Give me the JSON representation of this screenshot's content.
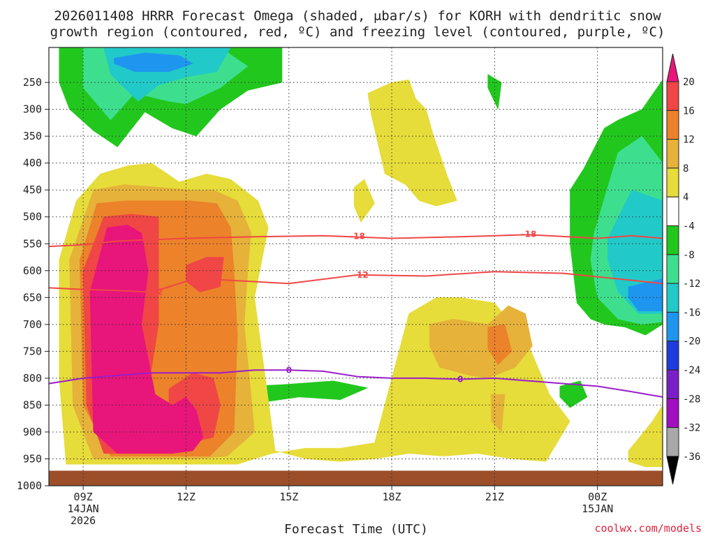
{
  "title_line1": "2026011408 HRRR Forecast Omega (shaded, μbar/s) for KORH with dendritic snow",
  "title_line2": "growth region (contoured, red, ºC) and freezing level (contoured, purple, ºC)",
  "credit": "coolwx.com/models",
  "colors": {
    "green": "#22c71e",
    "light_green": "#3ddf8f",
    "teal": "#22c9c9",
    "blue": "#1e96f0",
    "dark_blue": "#1e3cdc",
    "yellow": "#e6dc3a",
    "gold": "#e6b23a",
    "orange": "#ec822a",
    "red": "#f04646",
    "magenta": "#ec0f8c",
    "ground": "#9c4e28",
    "dgz_contour": "#f04646",
    "freezing_contour": "#9a1ec8"
  },
  "chart_data": {
    "type": "heatmap",
    "title": "2026011408 HRRR Forecast Omega (shaded, μbar/s) for KORH with dendritic snow growth region (contoured, red, ºC) and freezing level (contoured, purple, ºC)",
    "xlabel": "Forecast Time (UTC)",
    "ylabel": "",
    "x_ticks": [
      {
        "label": "09Z",
        "sub": [
          "14JAN",
          "2026"
        ]
      },
      {
        "label": "12Z",
        "sub": []
      },
      {
        "label": "15Z",
        "sub": []
      },
      {
        "label": "18Z",
        "sub": []
      },
      {
        "label": "21Z",
        "sub": []
      },
      {
        "label": "00Z",
        "sub": [
          "15JAN"
        ]
      }
    ],
    "x_range_hours": [
      8,
      25.9
    ],
    "y_ticks": [
      "250",
      "300",
      "350",
      "400",
      "450",
      "500",
      "550",
      "600",
      "650",
      "700",
      "750",
      "800",
      "850",
      "900",
      "950",
      "1000"
    ],
    "y_unit": "hPa",
    "colorbar": {
      "labels": [
        "20",
        "16",
        "12",
        "8",
        "4",
        "-4",
        "-8",
        "-12",
        "-16",
        "-20",
        "-24",
        "-28",
        "-32",
        "-36"
      ],
      "bins": [
        {
          "range": ">20",
          "color": "#e8157a"
        },
        {
          "range": "16 to 20",
          "color": "#f04646"
        },
        {
          "range": "12 to 16",
          "color": "#ec822a"
        },
        {
          "range": "8 to 12",
          "color": "#e6b23a"
        },
        {
          "range": "4 to 8",
          "color": "#e6dc3a"
        },
        {
          "range": "-4 to 4",
          "color": "#ffffff"
        },
        {
          "range": "-8 to -4",
          "color": "#22c71e"
        },
        {
          "range": "-12 to -8",
          "color": "#3ddf8f"
        },
        {
          "range": "-16 to -12",
          "color": "#22c9c9"
        },
        {
          "range": "-20 to -16",
          "color": "#1e96f0"
        },
        {
          "range": "-24 to -20",
          "color": "#1e3cdc"
        },
        {
          "range": "-28 to -24",
          "color": "#7a1ec8"
        },
        {
          "range": "-32 to -28",
          "color": "#a00ec0"
        },
        {
          "range": "-36 to -32",
          "color": "#a8a8a8"
        },
        {
          "range": "<-36",
          "color": "#000000"
        }
      ]
    },
    "contours": [
      {
        "label": "-18",
        "color": "#f04646",
        "hours": [
          8,
          9,
          10,
          12,
          14,
          16,
          18,
          20,
          22,
          24,
          25,
          25.9
        ],
        "pressure_hPa": [
          555,
          552,
          545,
          540,
          537,
          535,
          540,
          537,
          533,
          540,
          535,
          540
        ]
      },
      {
        "label": "-12",
        "color": "#f04646",
        "hours": [
          8,
          9,
          10,
          11,
          12,
          13,
          15,
          17,
          19,
          21,
          23,
          25,
          25.9
        ],
        "pressure_hPa": [
          632,
          635,
          637,
          640,
          620,
          617,
          624,
          608,
          610,
          602,
          605,
          618,
          624
        ]
      },
      {
        "label": "0",
        "color": "#9a1ec8",
        "hours": [
          8,
          9,
          10,
          11,
          12,
          13,
          14,
          15,
          16,
          17,
          18,
          19,
          20,
          21,
          22,
          23,
          24,
          25,
          25.9
        ],
        "pressure_hPa": [
          810,
          800,
          795,
          790,
          790,
          790,
          785,
          785,
          787,
          797,
          800,
          800,
          802,
          800,
          805,
          810,
          815,
          825,
          835
        ]
      }
    ],
    "contour_labels": [
      {
        "text": "-18",
        "hours": 17.0,
        "pressure_hPa": 536
      },
      {
        "text": "-18",
        "hours": 22.0,
        "pressure_hPa": 532
      },
      {
        "text": "-12",
        "hours": 11.1,
        "pressure_hPa": 640
      },
      {
        "text": "-12",
        "hours": 17.1,
        "pressure_hPa": 608
      },
      {
        "text": "0",
        "hours": 15.0,
        "pressure_hPa": 785
      },
      {
        "text": "0",
        "hours": 20.0,
        "pressure_hPa": 802
      }
    ],
    "shaded_regions": [
      {
        "bin": "-8 to -4",
        "color": "#22c71e",
        "hours": [
          8.3,
          9.3,
          10.3,
          11.3,
          12.3,
          13.3,
          13.8,
          14.8,
          14.8,
          13.8,
          13.0,
          12.3,
          11.6,
          10.8,
          10.0,
          9.3,
          8.6,
          8.3
        ],
        "pressure_hPa": [
          185,
          185,
          185,
          185,
          185,
          185,
          185,
          185,
          250,
          265,
          300,
          350,
          335,
          305,
          370,
          340,
          300,
          250
        ]
      },
      {
        "bin": "-12 to -8",
        "color": "#3ddf8f",
        "hours": [
          9.0,
          10.0,
          11.0,
          12.0,
          13.0,
          13.8,
          13.0,
          12.0,
          11.5,
          10.5,
          9.8,
          9.0
        ],
        "pressure_hPa": [
          185,
          185,
          185,
          185,
          185,
          220,
          260,
          290,
          285,
          270,
          320,
          260
        ]
      },
      {
        "bin": "-16 to -12",
        "color": "#22c9c9",
        "hours": [
          9.6,
          10.5,
          11.5,
          12.5,
          13.3,
          12.9,
          12.0,
          11.2,
          10.6,
          9.8
        ],
        "pressure_hPa": [
          185,
          185,
          185,
          185,
          185,
          230,
          240,
          255,
          285,
          235
        ]
      },
      {
        "bin": "-20 to -16",
        "color": "#1e96f0",
        "hours": [
          9.9,
          10.8,
          11.8,
          12.2,
          11.5,
          10.5,
          9.9
        ],
        "pressure_hPa": [
          205,
          195,
          200,
          215,
          230,
          230,
          215
        ]
      },
      {
        "bin": "-8 to -4",
        "color": "#22c71e",
        "hours": [
          23.2,
          23.6,
          24.2,
          24.6,
          25.3,
          25.9,
          25.9,
          25.4,
          24.8,
          24.2,
          23.8,
          23.4,
          23.2
        ],
        "pressure_hPa": [
          450,
          410,
          335,
          320,
          300,
          245,
          700,
          720,
          705,
          700,
          690,
          660,
          550
        ]
      },
      {
        "bin": "-12 to -8",
        "color": "#3ddf8f",
        "hours": [
          23.9,
          24.6,
          25.3,
          25.9,
          25.9,
          25.3,
          24.6,
          24.0,
          23.8
        ],
        "pressure_hPa": [
          530,
          380,
          350,
          400,
          695,
          700,
          690,
          650,
          580
        ]
      },
      {
        "bin": "-16 to -12",
        "color": "#22c9c9",
        "hours": [
          24.3,
          25.0,
          25.9,
          25.9,
          25.2,
          24.6,
          24.3
        ],
        "pressure_hPa": [
          540,
          450,
          470,
          680,
          680,
          640,
          580
        ]
      },
      {
        "bin": "-20 to -16",
        "color": "#1e96f0",
        "hours": [
          24.9,
          25.9,
          25.9,
          25.2,
          24.9
        ],
        "pressure_hPa": [
          630,
          615,
          675,
          675,
          650
        ]
      },
      {
        "bin": "-8 to -4",
        "color": "#22c71e",
        "hours": [
          13.8,
          14.8,
          16.3,
          17.3,
          16.5,
          15.3,
          14.2,
          13.8
        ],
        "pressure_hPa": [
          815,
          812,
          805,
          818,
          840,
          835,
          845,
          830
        ]
      },
      {
        "bin": "-8 to -4",
        "color": "#22c71e",
        "hours": [
          22.9,
          23.5,
          23.7,
          23.2,
          22.9
        ],
        "pressure_hPa": [
          815,
          805,
          835,
          855,
          835
        ]
      },
      {
        "bin": "-8 to -4",
        "color": "#22c71e",
        "hours": [
          20.8,
          21.2,
          21.1,
          20.8
        ],
        "pressure_hPa": [
          235,
          250,
          300,
          260
        ]
      },
      {
        "bin": "4 to 8",
        "color": "#e6dc3a",
        "hours": [
          8.3,
          8.8,
          9.5,
          10.3,
          11.0,
          11.8,
          12.6,
          13.3,
          14.1,
          14.4,
          14.0,
          14.6,
          15.5,
          16.5,
          17.5,
          18.5,
          19.5,
          20.5,
          21.5,
          22.5,
          23.2,
          22.6,
          22.0,
          21.0,
          20.0,
          19.3,
          18.5,
          17.5,
          16.5,
          15.5,
          14.5,
          13.5,
          12.5,
          11.5,
          10.5,
          9.5,
          8.5,
          8.3
        ],
        "pressure_hPa": [
          580,
          470,
          420,
          405,
          400,
          435,
          420,
          430,
          470,
          520,
          650,
          935,
          950,
          955,
          950,
          940,
          945,
          940,
          950,
          955,
          880,
          830,
          740,
          660,
          650,
          650,
          680,
          920,
          930,
          930,
          940,
          960,
          960,
          960,
          960,
          960,
          960,
          800
        ]
      },
      {
        "bin": "8 to 12",
        "color": "#e6b23a",
        "hours": [
          8.6,
          9.3,
          10.2,
          11.2,
          12.1,
          12.8,
          13.5,
          13.9,
          13.8,
          13.7,
          14.0,
          13.2,
          12.3,
          11.3,
          10.3,
          9.3,
          8.7
        ],
        "pressure_hPa": [
          580,
          450,
          440,
          445,
          450,
          450,
          470,
          530,
          600,
          700,
          900,
          945,
          950,
          950,
          950,
          950,
          850
        ]
      },
      {
        "bin": "12 to 16",
        "color": "#ec822a",
        "hours": [
          8.9,
          9.4,
          10.3,
          11.2,
          12.1,
          12.9,
          13.3,
          13.4,
          13.5,
          13.4,
          12.7,
          11.8,
          10.8,
          9.8,
          9.0
        ],
        "pressure_hPa": [
          580,
          475,
          470,
          470,
          470,
          475,
          520,
          600,
          720,
          900,
          945,
          945,
          945,
          945,
          850
        ]
      },
      {
        "bin": "16 to 20",
        "color": "#f04646",
        "hours": [
          9.0,
          9.6,
          10.4,
          11.2,
          11.2,
          10.6,
          9.6,
          9.1
        ],
        "pressure_hPa": [
          600,
          500,
          495,
          500,
          700,
          940,
          940,
          850
        ]
      },
      {
        "bin": "16 to 20",
        "color": "#f04646",
        "hours": [
          12.0,
          12.6,
          13.1,
          13.0,
          12.4,
          12.0
        ],
        "pressure_hPa": [
          590,
          575,
          575,
          630,
          640,
          620
        ]
      },
      {
        "bin": "16 to 20",
        "color": "#f04646",
        "hours": [
          11.5,
          12.2,
          12.8,
          13.0,
          12.8,
          12.1,
          11.5
        ],
        "pressure_hPa": [
          820,
          790,
          800,
          850,
          910,
          920,
          880
        ]
      },
      {
        "bin": ">20",
        "color": "#e8157a",
        "hours": [
          9.2,
          9.7,
          10.3,
          10.7,
          10.9,
          10.7,
          11.1,
          11.6,
          12.0,
          12.3,
          12.5,
          12.2,
          11.6,
          10.8,
          10.0,
          9.3
        ],
        "pressure_hPa": [
          640,
          520,
          515,
          530,
          600,
          700,
          830,
          850,
          835,
          860,
          910,
          935,
          940,
          940,
          940,
          900
        ]
      },
      {
        "bin": "8 to 12",
        "color": "#e6b23a",
        "hours": [
          19.1,
          19.8,
          20.8,
          21.4,
          21.9,
          22.1,
          21.6,
          20.8,
          20.3,
          19.4,
          19.1
        ],
        "pressure_hPa": [
          700,
          690,
          700,
          665,
          680,
          740,
          780,
          800,
          795,
          780,
          740
        ]
      },
      {
        "bin": "12 to 16",
        "color": "#ec822a",
        "hours": [
          20.8,
          21.3,
          21.5,
          21.1,
          20.8
        ],
        "pressure_hPa": [
          705,
          700,
          750,
          775,
          745
        ]
      },
      {
        "bin": "8 to 12",
        "color": "#e6b23a",
        "hours": [
          20.9,
          21.3,
          21.2,
          20.9
        ],
        "pressure_hPa": [
          830,
          830,
          900,
          880
        ]
      },
      {
        "bin": "4 to 8",
        "color": "#e6dc3a",
        "hours": [
          17.3,
          18.0,
          18.5,
          18.7,
          19.0,
          19.2,
          19.6,
          19.9,
          19.3,
          18.8,
          18.4,
          17.8,
          17.4
        ],
        "pressure_hPa": [
          270,
          250,
          245,
          280,
          300,
          345,
          420,
          470,
          480,
          470,
          440,
          420,
          310
        ]
      },
      {
        "bin": "4 to 8",
        "color": "#e6dc3a",
        "hours": [
          16.9,
          17.2,
          17.5,
          17.1,
          16.9
        ],
        "pressure_hPa": [
          445,
          430,
          475,
          510,
          480
        ]
      },
      {
        "bin": "4 to 8",
        "color": "#e6dc3a",
        "hours": [
          24.9,
          25.6,
          25.9,
          25.9,
          25.4,
          24.9
        ],
        "pressure_hPa": [
          935,
          880,
          850,
          965,
          965,
          955
        ]
      }
    ]
  }
}
